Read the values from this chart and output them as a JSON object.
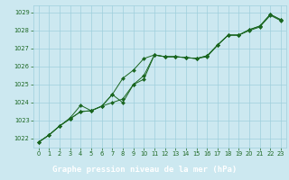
{
  "x": [
    0,
    1,
    2,
    3,
    4,
    5,
    6,
    7,
    8,
    9,
    10,
    11,
    12,
    13,
    14,
    15,
    16,
    17,
    18,
    19,
    20,
    21,
    22,
    23
  ],
  "line1": [
    1021.8,
    1022.2,
    1022.7,
    1023.1,
    1023.5,
    1023.55,
    1023.8,
    1024.0,
    1024.2,
    1025.0,
    1025.3,
    1026.65,
    1026.55,
    1026.55,
    1026.5,
    1026.45,
    1026.55,
    1027.2,
    1027.75,
    1027.75,
    1028.0,
    1028.2,
    1028.85,
    1028.55
  ],
  "line2": [
    1021.8,
    1022.2,
    1022.7,
    1023.15,
    1023.85,
    1023.55,
    1023.8,
    1024.45,
    1025.35,
    1025.8,
    1026.45,
    1026.65,
    1026.55,
    1026.55,
    1026.5,
    1026.45,
    1026.6,
    1027.2,
    1027.75,
    1027.75,
    1028.05,
    1028.25,
    1028.9,
    1028.6
  ],
  "line3": [
    1021.8,
    1022.2,
    1022.7,
    1023.1,
    1023.5,
    1023.55,
    1023.8,
    1024.45,
    1024.0,
    1025.0,
    1025.5,
    1026.65,
    1026.55,
    1026.55,
    1026.5,
    1026.45,
    1026.6,
    1027.2,
    1027.75,
    1027.75,
    1028.05,
    1028.25,
    1028.9,
    1028.6
  ],
  "bg_color": "#cce8f0",
  "label_bg_color": "#2d6e2d",
  "grid_color": "#9fcfdc",
  "line_color": "#1a6620",
  "marker_color": "#1a6620",
  "xlabel": "Graphe pression niveau de la mer (hPa)",
  "xlabel_color": "#ffffff",
  "xlabel_fontsize": 6.5,
  "ylim": [
    1021.5,
    1029.4
  ],
  "xlim": [
    -0.5,
    23.5
  ],
  "yticks": [
    1022,
    1023,
    1024,
    1025,
    1026,
    1027,
    1028,
    1029
  ],
  "xticks": [
    0,
    1,
    2,
    3,
    4,
    5,
    6,
    7,
    8,
    9,
    10,
    11,
    12,
    13,
    14,
    15,
    16,
    17,
    18,
    19,
    20,
    21,
    22,
    23
  ],
  "tick_fontsize": 4.8,
  "tick_color": "#1a6620"
}
